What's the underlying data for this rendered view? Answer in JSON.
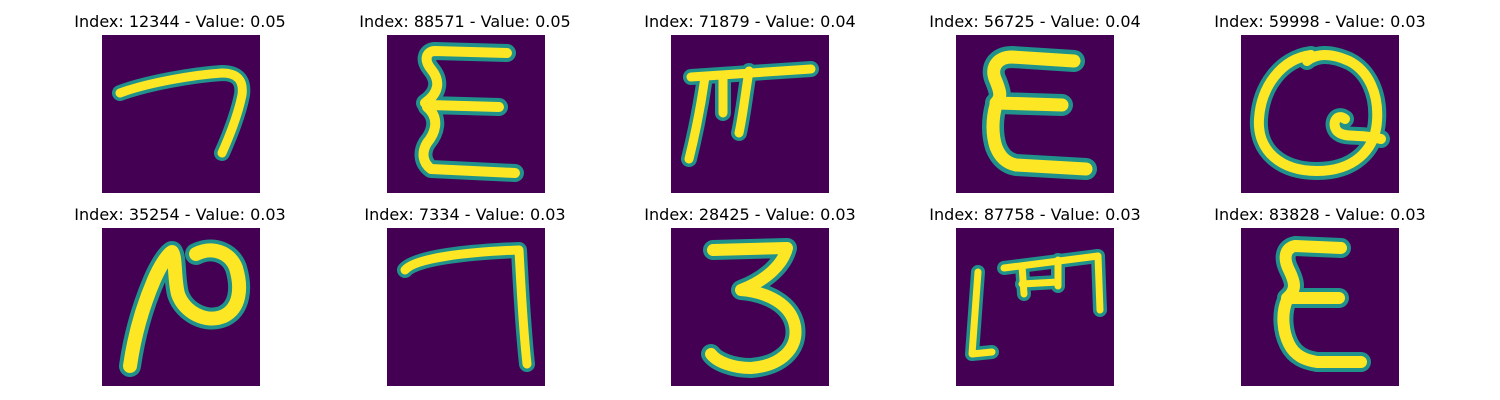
{
  "figure": {
    "colors": {
      "background": "#440154",
      "stroke_core": "#FDE725",
      "stroke_edge": "#21918C"
    },
    "panels": [
      {
        "title": "Index: 12344 - Value: 0.05",
        "glyph": "seven-like"
      },
      {
        "title": "Index: 88571 - Value: 0.05",
        "glyph": "sigma-like"
      },
      {
        "title": "Index: 71879 - Value: 0.04",
        "glyph": "pi-like"
      },
      {
        "title": "Index: 56725 - Value: 0.04",
        "glyph": "E-like"
      },
      {
        "title": "Index: 59998 - Value: 0.03",
        "glyph": "Q-like"
      },
      {
        "title": "Index: 35254 - Value: 0.03",
        "glyph": "N-like"
      },
      {
        "title": "Index: 7334 - Value: 0.03",
        "glyph": "seven-like"
      },
      {
        "title": "Index: 28425 - Value: 0.03",
        "glyph": "three"
      },
      {
        "title": "Index: 87758 - Value: 0.03",
        "glyph": "m-like"
      },
      {
        "title": "Index: 83828 - Value: 0.03",
        "glyph": "epsilon-like"
      }
    ]
  }
}
